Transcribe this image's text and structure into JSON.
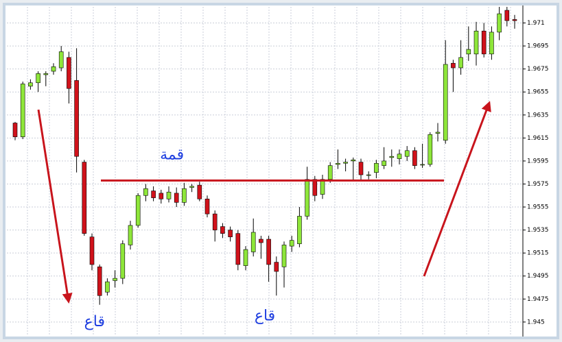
{
  "chart_data": {
    "type": "candlestick",
    "up_color": "#8ee63a",
    "down_color": "#d0121b",
    "ylim": [
      1.9443,
      1.9729
    ],
    "yticks": [
      {
        "value": 1.9715,
        "label": "1.971"
      },
      1.9695,
      1.9675,
      1.9655,
      1.9635,
      1.9615,
      1.9595,
      1.9575,
      1.9555,
      1.9535,
      1.9515,
      1.9495,
      1.9475,
      {
        "value": 1.9455,
        "label": "1.945"
      }
    ],
    "grid": true,
    "open": [
      1.9628,
      1.9616,
      1.966,
      1.9663,
      1.967,
      1.9673,
      1.9676,
      1.9685,
      1.9665,
      1.9594,
      1.9529,
      1.9503,
      1.9481,
      1.9491,
      1.9493,
      1.9522,
      1.9539,
      1.9565,
      1.9569,
      1.9567,
      1.9562,
      1.9567,
      1.9559,
      1.9572,
      1.9574,
      1.9562,
      1.9549,
      1.9538,
      1.9535,
      1.9532,
      1.9504,
      1.9516,
      1.9527,
      1.9527,
      1.9507,
      1.9503,
      1.9521,
      1.9523,
      1.9547,
      1.9579,
      1.9566,
      1.9579,
      1.9592,
      1.9593,
      1.9595,
      1.9594,
      1.9583,
      1.9585,
      1.9591,
      1.9598,
      1.9597,
      1.9599,
      1.9604,
      1.9592,
      1.9592,
      1.9619,
      1.9613,
      1.968,
      1.9676,
      1.9688,
      1.9688,
      1.9708,
      1.9688,
      1.9707,
      1.9726,
      1.9718
    ],
    "high": [
      1.9629,
      1.9664,
      1.9666,
      1.9673,
      1.9673,
      1.968,
      1.9695,
      1.969,
      1.9693,
      1.9596,
      1.9532,
      1.9505,
      1.9493,
      1.95,
      1.9526,
      1.9543,
      1.9567,
      1.9575,
      1.9573,
      1.957,
      1.9573,
      1.9572,
      1.9576,
      1.9575,
      1.9577,
      1.9565,
      1.9552,
      1.9541,
      1.9538,
      1.9535,
      1.9521,
      1.9545,
      1.953,
      1.953,
      1.9512,
      1.9525,
      1.953,
      1.9555,
      1.959,
      1.9582,
      1.9583,
      1.9594,
      1.9605,
      1.9597,
      1.9598,
      1.9597,
      1.9586,
      1.9596,
      1.9607,
      1.9605,
      1.9605,
      1.9608,
      1.9607,
      1.961,
      1.962,
      1.9628,
      1.97,
      1.9683,
      1.97,
      1.9712,
      1.9716,
      1.9715,
      1.9712,
      1.973,
      1.9735,
      1.9722
    ],
    "low": [
      1.9613,
      1.9614,
      1.9657,
      1.9655,
      1.966,
      1.967,
      1.9673,
      1.9645,
      1.9585,
      1.953,
      1.95,
      1.947,
      1.9478,
      1.9485,
      1.9488,
      1.9518,
      1.9537,
      1.956,
      1.956,
      1.9558,
      1.9559,
      1.9555,
      1.9556,
      1.9568,
      1.956,
      1.9546,
      1.9525,
      1.9528,
      1.9525,
      1.95,
      1.95,
      1.9512,
      1.951,
      1.949,
      1.9478,
      1.9485,
      1.9516,
      1.952,
      1.9544,
      1.956,
      1.9562,
      1.9576,
      1.9588,
      1.9586,
      1.9578,
      1.9578,
      1.9579,
      1.958,
      1.9588,
      1.959,
      1.9592,
      1.9595,
      1.9588,
      1.9589,
      1.959,
      1.9612,
      1.961,
      1.9655,
      1.967,
      1.9682,
      1.9678,
      1.9685,
      1.9683,
      1.97,
      1.9712,
      1.971
    ],
    "close": [
      1.9616,
      1.9662,
      1.9663,
      1.9671,
      1.9671,
      1.9677,
      1.969,
      1.9658,
      1.9599,
      1.9532,
      1.9505,
      1.9478,
      1.949,
      1.9493,
      1.9523,
      1.9539,
      1.9565,
      1.9571,
      1.9563,
      1.9562,
      1.9568,
      1.9559,
      1.9571,
      1.9573,
      1.9562,
      1.9549,
      1.9535,
      1.9532,
      1.9529,
      1.9505,
      1.9518,
      1.9533,
      1.9524,
      1.9505,
      1.9499,
      1.9522,
      1.9526,
      1.9547,
      1.9579,
      1.9565,
      1.9579,
      1.9591,
      1.9593,
      1.9594,
      1.9596,
      1.9583,
      1.9583,
      1.9593,
      1.9595,
      1.9599,
      1.9601,
      1.9604,
      1.9591,
      1.9592,
      1.9618,
      1.962,
      1.9679,
      1.9676,
      1.9685,
      1.9692,
      1.9708,
      1.9688,
      1.9707,
      1.9723,
      1.9717,
      1.9717
    ],
    "level": 1.9578,
    "level_color": "#c8141c",
    "annotations": [
      {
        "text": "قمة",
        "x": 0.32,
        "y": 1.96
      },
      {
        "text": "قاع",
        "x": 0.17,
        "y": 1.9455
      },
      {
        "text": "قاع",
        "x": 0.5,
        "y": 1.946
      }
    ]
  }
}
